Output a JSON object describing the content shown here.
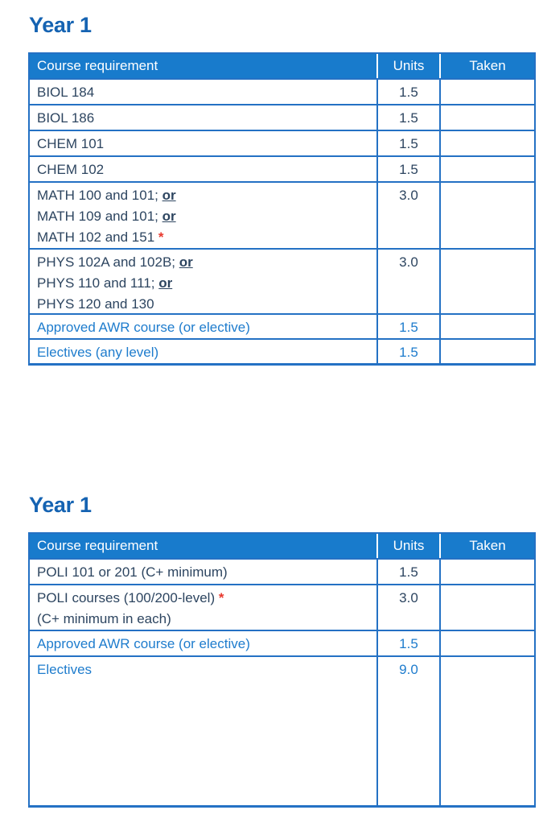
{
  "colors": {
    "title_blue": "#1563b2",
    "header_bg": "#187bcc",
    "header_text": "#ffffff",
    "border_blue": "#2471c4",
    "dark_text": "#2d4560",
    "blue_text": "#1e7ccd",
    "red_asterisk": "#e8392e"
  },
  "sections": [
    {
      "title": "Year 1",
      "table": {
        "columns": [
          "Course requirement",
          "Units",
          "Taken"
        ],
        "rows": [
          {
            "course": [
              [
                {
                  "t": "BIOL 184"
                }
              ]
            ],
            "units": "1.5",
            "taken": "",
            "color": "dark",
            "height": 32
          },
          {
            "course": [
              [
                {
                  "t": "BIOL 186"
                }
              ]
            ],
            "units": "1.5",
            "taken": "",
            "color": "dark",
            "height": 32
          },
          {
            "course": [
              [
                {
                  "t": "CHEM 101"
                }
              ]
            ],
            "units": "1.5",
            "taken": "",
            "color": "dark",
            "height": 32
          },
          {
            "course": [
              [
                {
                  "t": "CHEM 102"
                }
              ]
            ],
            "units": "1.5",
            "taken": "",
            "color": "dark",
            "height": 32
          },
          {
            "course": [
              [
                {
                  "t": "MATH 100 and 101; "
                },
                {
                  "t": "or",
                  "or": true
                }
              ],
              [
                {
                  "t": "MATH 109 and 101; "
                },
                {
                  "t": "or",
                  "or": true
                }
              ],
              [
                {
                  "t": "MATH 102 and 151 "
                },
                {
                  "t": "*",
                  "red": true
                }
              ]
            ],
            "units": "3.0",
            "taken": "",
            "color": "dark",
            "height": 83
          },
          {
            "course": [
              [
                {
                  "t": "PHYS 102A and 102B; "
                },
                {
                  "t": "or",
                  "or": true
                }
              ],
              [
                {
                  "t": "PHYS 110 and 111; "
                },
                {
                  "t": "or",
                  "or": true
                }
              ],
              [
                {
                  "t": "PHYS 120 and 130"
                }
              ]
            ],
            "units": "3.0",
            "taken": "",
            "color": "dark",
            "height": 81
          },
          {
            "course": [
              [
                {
                  "t": "Approved AWR course (or elective)"
                }
              ]
            ],
            "units": "1.5",
            "taken": "",
            "color": "blue",
            "height": 31
          },
          {
            "course": [
              [
                {
                  "t": "Electives (any level)"
                }
              ]
            ],
            "units": "1.5",
            "taken": "",
            "color": "blue",
            "height": 31
          }
        ]
      }
    },
    {
      "title": "Year 1",
      "table": {
        "columns": [
          "Course requirement",
          "Units",
          "Taken"
        ],
        "rows": [
          {
            "course": [
              [
                {
                  "t": "POLI 101 or 201 (C+ minimum)"
                }
              ]
            ],
            "units": "1.5",
            "taken": "",
            "color": "dark",
            "height": 32
          },
          {
            "course": [
              [
                {
                  "t": "POLI courses (100/200-level) "
                },
                {
                  "t": "*",
                  "red": true
                }
              ],
              [
                {
                  "t": "(C+ minimum in each)"
                }
              ]
            ],
            "units": "3.0",
            "taken": "",
            "color": "dark",
            "height": 57
          },
          {
            "course": [
              [
                {
                  "t": "Approved AWR course (or elective)"
                }
              ]
            ],
            "units": "1.5",
            "taken": "",
            "color": "blue",
            "height": 32
          },
          {
            "course": [
              [
                {
                  "t": "Electives"
                }
              ]
            ],
            "units": "9.0",
            "taken": "",
            "color": "blue",
            "height": 186
          }
        ]
      }
    }
  ]
}
